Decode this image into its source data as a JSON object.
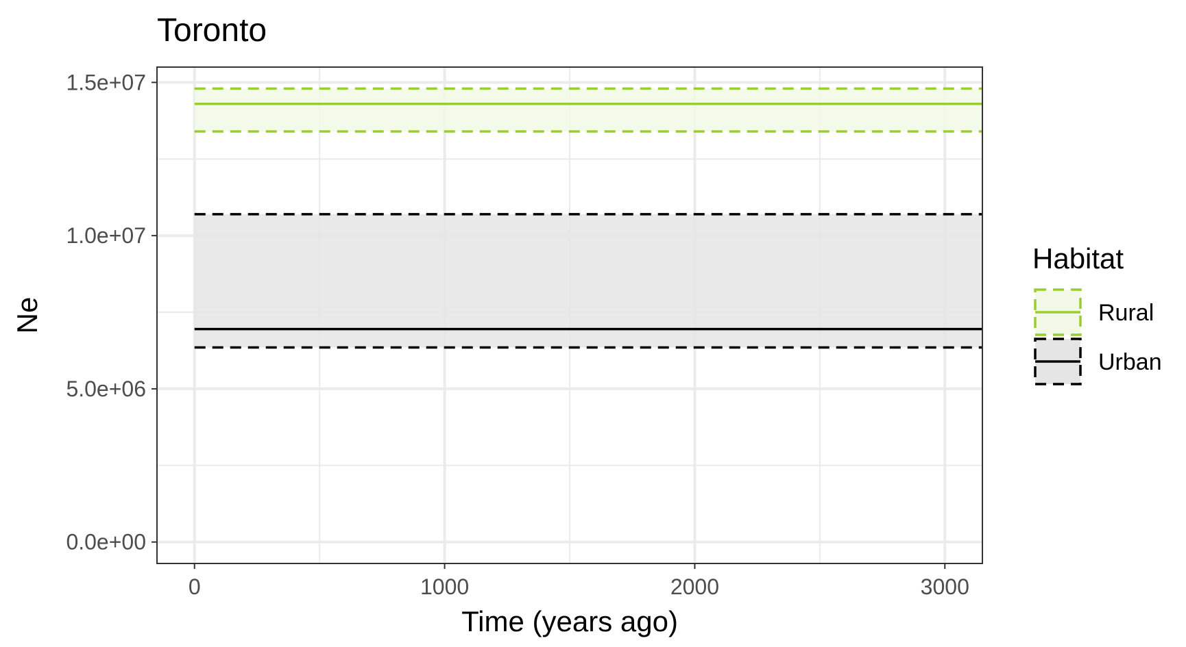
{
  "chart_data": {
    "type": "line",
    "title": "Toronto",
    "xlabel": "Time (years ago)",
    "ylabel": "Ne",
    "xlim": [
      -150,
      3150
    ],
    "ylim": [
      -700000,
      15500000
    ],
    "x_ticks": [
      0,
      1000,
      2000,
      3000
    ],
    "x_tick_labels": [
      "0",
      "1000",
      "2000",
      "3000"
    ],
    "y_ticks": [
      0,
      5000000,
      10000000,
      15000000
    ],
    "y_tick_labels": [
      "0.0e+00",
      "5.0e+06",
      "1.0e+07",
      "1.5e+07"
    ],
    "x_minor": [
      500,
      1500,
      2500
    ],
    "y_minor": [
      2500000,
      7500000,
      12500000
    ],
    "grid": true,
    "legend": {
      "title": "Habitat",
      "position": "right",
      "entries": [
        "Rural",
        "Urban"
      ]
    },
    "series": [
      {
        "name": "Rural",
        "color": "#9acd32",
        "fill": "#f2f9e6",
        "x": [
          0,
          3150
        ],
        "values": [
          14300000,
          14300000
        ],
        "lower": [
          13400000,
          13400000
        ],
        "upper": [
          14800000,
          14800000
        ]
      },
      {
        "name": "Urban",
        "color": "#000000",
        "fill": "#e5e5e5",
        "x": [
          0,
          3150
        ],
        "values": [
          6950000,
          6950000
        ],
        "lower": [
          6350000,
          6350000
        ],
        "upper": [
          10700000,
          10700000
        ]
      }
    ]
  }
}
